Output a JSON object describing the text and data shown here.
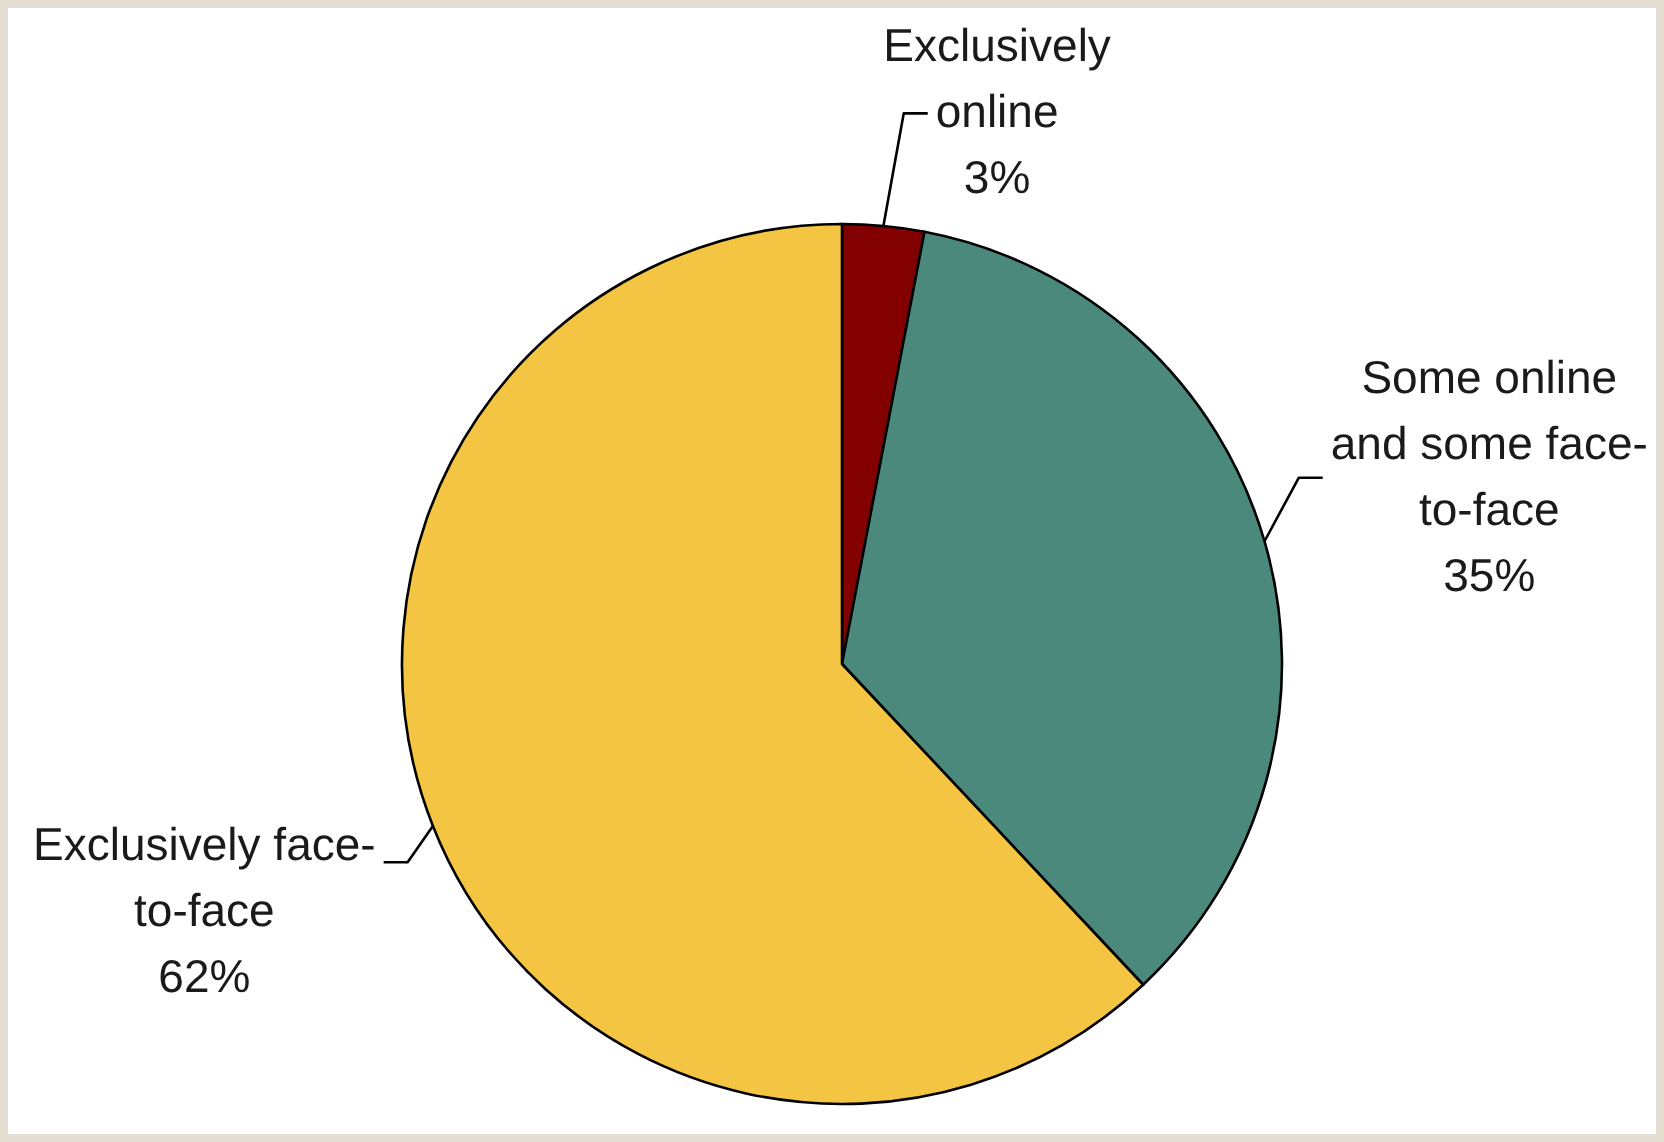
{
  "chart_data": {
    "type": "pie",
    "categories": [
      "Exclusively online",
      "Some online and some face-to-face",
      "Exclusively face-to-face"
    ],
    "values": [
      3,
      35,
      62
    ],
    "colors": [
      "#820000",
      "#4a897c",
      "#f4c542"
    ],
    "value_labels": [
      "3%",
      "35%",
      "62%"
    ]
  }
}
